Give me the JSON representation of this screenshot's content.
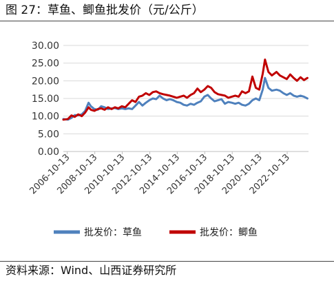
{
  "figure": {
    "title": "图 27：草鱼、鲫鱼批发价（元/公斤）",
    "source": "资料来源：Wind、山西证券研究所"
  },
  "chart_data": {
    "type": "line",
    "title": "",
    "xlabel": "",
    "ylabel": "",
    "ylim": [
      0,
      30
    ],
    "yticks": [
      "0.00",
      "5.00",
      "10.00",
      "15.00",
      "20.00",
      "25.00",
      "30.00"
    ],
    "xlim": [
      "2006-07-01",
      "2024-05-01"
    ],
    "xticks": [
      "2006-10-13",
      "2008-10-13",
      "2010-10-13",
      "2012-10-13",
      "2014-10-13",
      "2016-10-13",
      "2018-10-13",
      "2020-10-13",
      "2022-10-13"
    ],
    "grid": "horizontal",
    "legend": "bottom",
    "series": [
      {
        "name": "批发价：草鱼",
        "color": "#4f81bd",
        "points": [
          [
            "2006-07-01",
            9.2
          ],
          [
            "2006-11-01",
            9.0
          ],
          [
            "2007-02-01",
            9.5
          ],
          [
            "2007-05-01",
            10.3
          ],
          [
            "2007-08-01",
            10.2
          ],
          [
            "2007-11-01",
            10.5
          ],
          [
            "2008-02-01",
            11.5
          ],
          [
            "2008-05-01",
            13.8
          ],
          [
            "2008-07-01",
            12.8
          ],
          [
            "2008-10-01",
            12.0
          ],
          [
            "2009-01-01",
            11.8
          ],
          [
            "2009-04-01",
            12.8
          ],
          [
            "2009-07-01",
            12.5
          ],
          [
            "2009-10-01",
            12.0
          ],
          [
            "2010-01-01",
            12.2
          ],
          [
            "2010-04-01",
            12.3
          ],
          [
            "2010-07-01",
            12.0
          ],
          [
            "2010-10-01",
            12.2
          ],
          [
            "2011-01-01",
            12.0
          ],
          [
            "2011-04-01",
            12.2
          ],
          [
            "2011-07-01",
            12.0
          ],
          [
            "2011-10-01",
            13.0
          ],
          [
            "2012-01-01",
            14.0
          ],
          [
            "2012-04-01",
            13.0
          ],
          [
            "2012-07-01",
            13.8
          ],
          [
            "2012-10-01",
            14.5
          ],
          [
            "2013-01-01",
            15.0
          ],
          [
            "2013-04-01",
            14.8
          ],
          [
            "2013-07-01",
            15.8
          ],
          [
            "2013-10-01",
            15.0
          ],
          [
            "2014-01-01",
            14.5
          ],
          [
            "2014-04-01",
            14.8
          ],
          [
            "2014-07-01",
            14.5
          ],
          [
            "2014-10-01",
            14.0
          ],
          [
            "2015-01-01",
            13.8
          ],
          [
            "2015-04-01",
            13.2
          ],
          [
            "2015-07-01",
            13.0
          ],
          [
            "2015-10-01",
            13.5
          ],
          [
            "2016-01-01",
            13.2
          ],
          [
            "2016-04-01",
            13.8
          ],
          [
            "2016-07-01",
            14.2
          ],
          [
            "2016-10-01",
            15.5
          ],
          [
            "2017-01-01",
            16.0
          ],
          [
            "2017-04-01",
            15.0
          ],
          [
            "2017-07-01",
            14.2
          ],
          [
            "2017-10-01",
            14.5
          ],
          [
            "2018-01-01",
            14.8
          ],
          [
            "2018-04-01",
            13.5
          ],
          [
            "2018-07-01",
            14.0
          ],
          [
            "2018-10-01",
            13.8
          ],
          [
            "2019-01-01",
            13.5
          ],
          [
            "2019-04-01",
            13.8
          ],
          [
            "2019-07-01",
            13.2
          ],
          [
            "2019-10-01",
            13.0
          ],
          [
            "2020-01-01",
            13.5
          ],
          [
            "2020-04-01",
            14.5
          ],
          [
            "2020-07-01",
            15.0
          ],
          [
            "2020-10-01",
            14.5
          ],
          [
            "2021-01-01",
            17.5
          ],
          [
            "2021-03-01",
            20.8
          ],
          [
            "2021-06-01",
            18.0
          ],
          [
            "2021-09-01",
            17.2
          ],
          [
            "2022-01-01",
            17.5
          ],
          [
            "2022-04-01",
            17.2
          ],
          [
            "2022-07-01",
            16.5
          ],
          [
            "2022-10-01",
            16.0
          ],
          [
            "2023-01-01",
            16.5
          ],
          [
            "2023-04-01",
            15.8
          ],
          [
            "2023-07-01",
            15.5
          ],
          [
            "2023-10-01",
            15.8
          ],
          [
            "2024-01-01",
            15.5
          ],
          [
            "2024-04-01",
            15.0
          ]
        ]
      },
      {
        "name": "批发价：鲫鱼",
        "color": "#c00000",
        "points": [
          [
            "2006-07-01",
            9.0
          ],
          [
            "2006-11-01",
            9.2
          ],
          [
            "2007-02-01",
            10.2
          ],
          [
            "2007-05-01",
            9.8
          ],
          [
            "2007-08-01",
            10.5
          ],
          [
            "2007-11-01",
            10.0
          ],
          [
            "2008-02-01",
            11.0
          ],
          [
            "2008-05-01",
            12.5
          ],
          [
            "2008-07-01",
            11.8
          ],
          [
            "2008-10-01",
            11.5
          ],
          [
            "2009-01-01",
            12.0
          ],
          [
            "2009-04-01",
            12.2
          ],
          [
            "2009-07-01",
            11.8
          ],
          [
            "2009-10-01",
            12.5
          ],
          [
            "2010-01-01",
            12.0
          ],
          [
            "2010-04-01",
            12.5
          ],
          [
            "2010-07-01",
            12.2
          ],
          [
            "2010-10-01",
            12.8
          ],
          [
            "2011-01-01",
            12.5
          ],
          [
            "2011-04-01",
            13.5
          ],
          [
            "2011-07-01",
            14.5
          ],
          [
            "2011-10-01",
            14.0
          ],
          [
            "2012-01-01",
            15.5
          ],
          [
            "2012-04-01",
            15.8
          ],
          [
            "2012-07-01",
            16.5
          ],
          [
            "2012-10-01",
            16.0
          ],
          [
            "2013-01-01",
            16.8
          ],
          [
            "2013-04-01",
            17.0
          ],
          [
            "2013-07-01",
            16.5
          ],
          [
            "2013-10-01",
            16.2
          ],
          [
            "2014-01-01",
            16.0
          ],
          [
            "2014-04-01",
            15.8
          ],
          [
            "2014-07-01",
            15.5
          ],
          [
            "2014-10-01",
            15.2
          ],
          [
            "2015-01-01",
            15.5
          ],
          [
            "2015-04-01",
            15.8
          ],
          [
            "2015-07-01",
            15.2
          ],
          [
            "2015-10-01",
            16.0
          ],
          [
            "2016-01-01",
            16.5
          ],
          [
            "2016-04-01",
            17.8
          ],
          [
            "2016-07-01",
            16.8
          ],
          [
            "2016-10-01",
            17.5
          ],
          [
            "2017-01-01",
            18.5
          ],
          [
            "2017-04-01",
            18.0
          ],
          [
            "2017-07-01",
            16.8
          ],
          [
            "2017-10-01",
            16.2
          ],
          [
            "2018-01-01",
            16.0
          ],
          [
            "2018-04-01",
            15.8
          ],
          [
            "2018-07-01",
            15.2
          ],
          [
            "2018-10-01",
            15.5
          ],
          [
            "2019-01-01",
            15.8
          ],
          [
            "2019-04-01",
            15.5
          ],
          [
            "2019-07-01",
            17.0
          ],
          [
            "2019-10-01",
            16.5
          ],
          [
            "2020-01-01",
            17.0
          ],
          [
            "2020-04-01",
            21.2
          ],
          [
            "2020-07-01",
            18.0
          ],
          [
            "2020-10-01",
            17.5
          ],
          [
            "2021-01-01",
            22.0
          ],
          [
            "2021-03-01",
            26.0
          ],
          [
            "2021-06-01",
            22.5
          ],
          [
            "2021-09-01",
            21.5
          ],
          [
            "2022-01-01",
            22.5
          ],
          [
            "2022-04-01",
            21.5
          ],
          [
            "2022-07-01",
            21.0
          ],
          [
            "2022-10-01",
            20.5
          ],
          [
            "2023-01-01",
            21.8
          ],
          [
            "2023-04-01",
            20.8
          ],
          [
            "2023-07-01",
            20.0
          ],
          [
            "2023-10-01",
            21.0
          ],
          [
            "2024-01-01",
            20.2
          ],
          [
            "2024-04-01",
            20.8
          ]
        ]
      }
    ]
  }
}
